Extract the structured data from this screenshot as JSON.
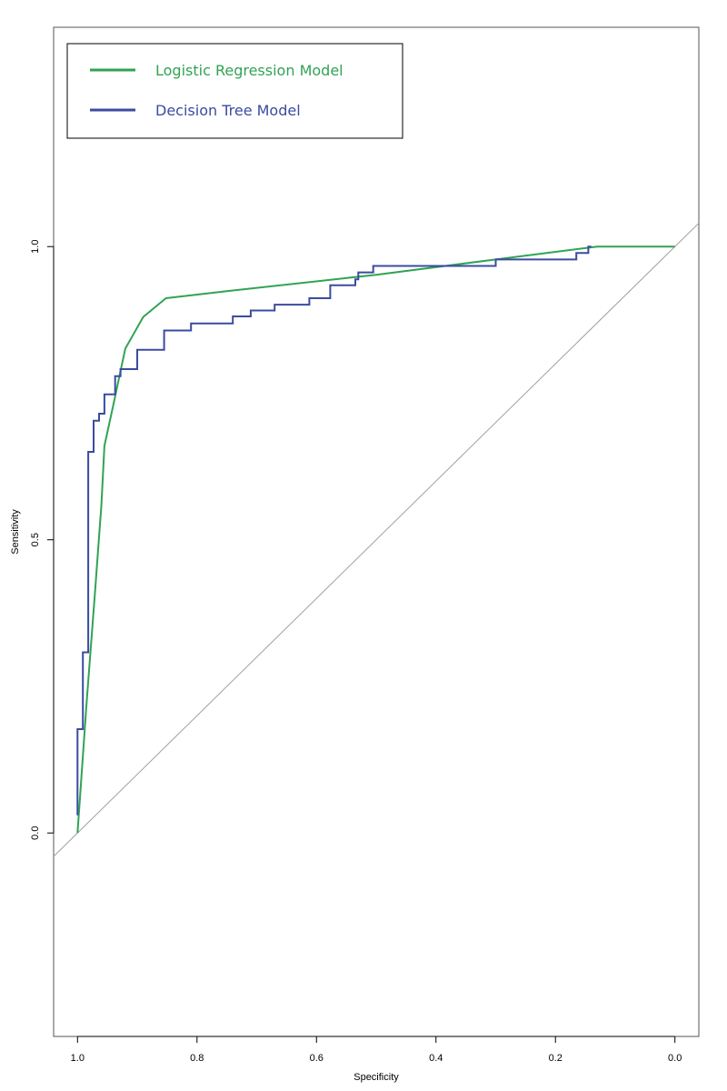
{
  "chart_data": {
    "type": "line",
    "xlabel": "Specificity",
    "ylabel": "Sensitivity",
    "x_reversed": true,
    "xlim": [
      1.04,
      -0.04
    ],
    "ylim": [
      -0.347,
      1.374
    ],
    "x_ticks": [
      1.0,
      0.8,
      0.6,
      0.4,
      0.2,
      0.0
    ],
    "x_tick_labels": [
      "1.0",
      "0.8",
      "0.6",
      "0.4",
      "0.2",
      "0.0"
    ],
    "y_ticks": [
      0.0,
      0.5,
      1.0
    ],
    "y_tick_labels": [
      "0.0",
      "0.5",
      "1.0"
    ],
    "grid": false,
    "legend_position": "top-left",
    "reference_line": {
      "from": [
        1.0,
        0.0
      ],
      "to": [
        0.0,
        1.0
      ],
      "color": "#a0a0a0"
    },
    "series": [
      {
        "name": "Logistic Regression Model",
        "color": "#31a354",
        "step": false,
        "points": [
          [
            1.0,
            0.0
          ],
          [
            0.985,
            0.22
          ],
          [
            0.97,
            0.42
          ],
          [
            0.96,
            0.56
          ],
          [
            0.955,
            0.66
          ],
          [
            0.94,
            0.73
          ],
          [
            0.92,
            0.826
          ],
          [
            0.89,
            0.88
          ],
          [
            0.852,
            0.912
          ],
          [
            0.75,
            0.924
          ],
          [
            0.5,
            0.952
          ],
          [
            0.3,
            0.978
          ],
          [
            0.13,
            1.0
          ],
          [
            0.0,
            1.0
          ]
        ]
      },
      {
        "name": "Decision Tree Model",
        "color": "#3b4ba0",
        "step": true,
        "points": [
          [
            1.0,
            0.03
          ],
          [
            1.0,
            0.177
          ],
          [
            0.991,
            0.177
          ],
          [
            0.991,
            0.308
          ],
          [
            0.982,
            0.308
          ],
          [
            0.982,
            0.65
          ],
          [
            0.973,
            0.65
          ],
          [
            0.973,
            0.703
          ],
          [
            0.964,
            0.703
          ],
          [
            0.964,
            0.715
          ],
          [
            0.955,
            0.715
          ],
          [
            0.955,
            0.748
          ],
          [
            0.937,
            0.748
          ],
          [
            0.937,
            0.779
          ],
          [
            0.928,
            0.779
          ],
          [
            0.928,
            0.791
          ],
          [
            0.9,
            0.791
          ],
          [
            0.9,
            0.824
          ],
          [
            0.855,
            0.824
          ],
          [
            0.855,
            0.857
          ],
          [
            0.81,
            0.857
          ],
          [
            0.81,
            0.869
          ],
          [
            0.74,
            0.869
          ],
          [
            0.74,
            0.881
          ],
          [
            0.71,
            0.881
          ],
          [
            0.71,
            0.891
          ],
          [
            0.67,
            0.891
          ],
          [
            0.67,
            0.901
          ],
          [
            0.612,
            0.901
          ],
          [
            0.612,
            0.912
          ],
          [
            0.577,
            0.912
          ],
          [
            0.577,
            0.934
          ],
          [
            0.535,
            0.934
          ],
          [
            0.535,
            0.944
          ],
          [
            0.53,
            0.944
          ],
          [
            0.53,
            0.956
          ],
          [
            0.505,
            0.956
          ],
          [
            0.505,
            0.967
          ],
          [
            0.3,
            0.967
          ],
          [
            0.3,
            0.978
          ],
          [
            0.165,
            0.978
          ],
          [
            0.165,
            0.989
          ],
          [
            0.145,
            0.989
          ],
          [
            0.145,
            1.0
          ],
          [
            0.14,
            1.0
          ]
        ]
      }
    ]
  }
}
